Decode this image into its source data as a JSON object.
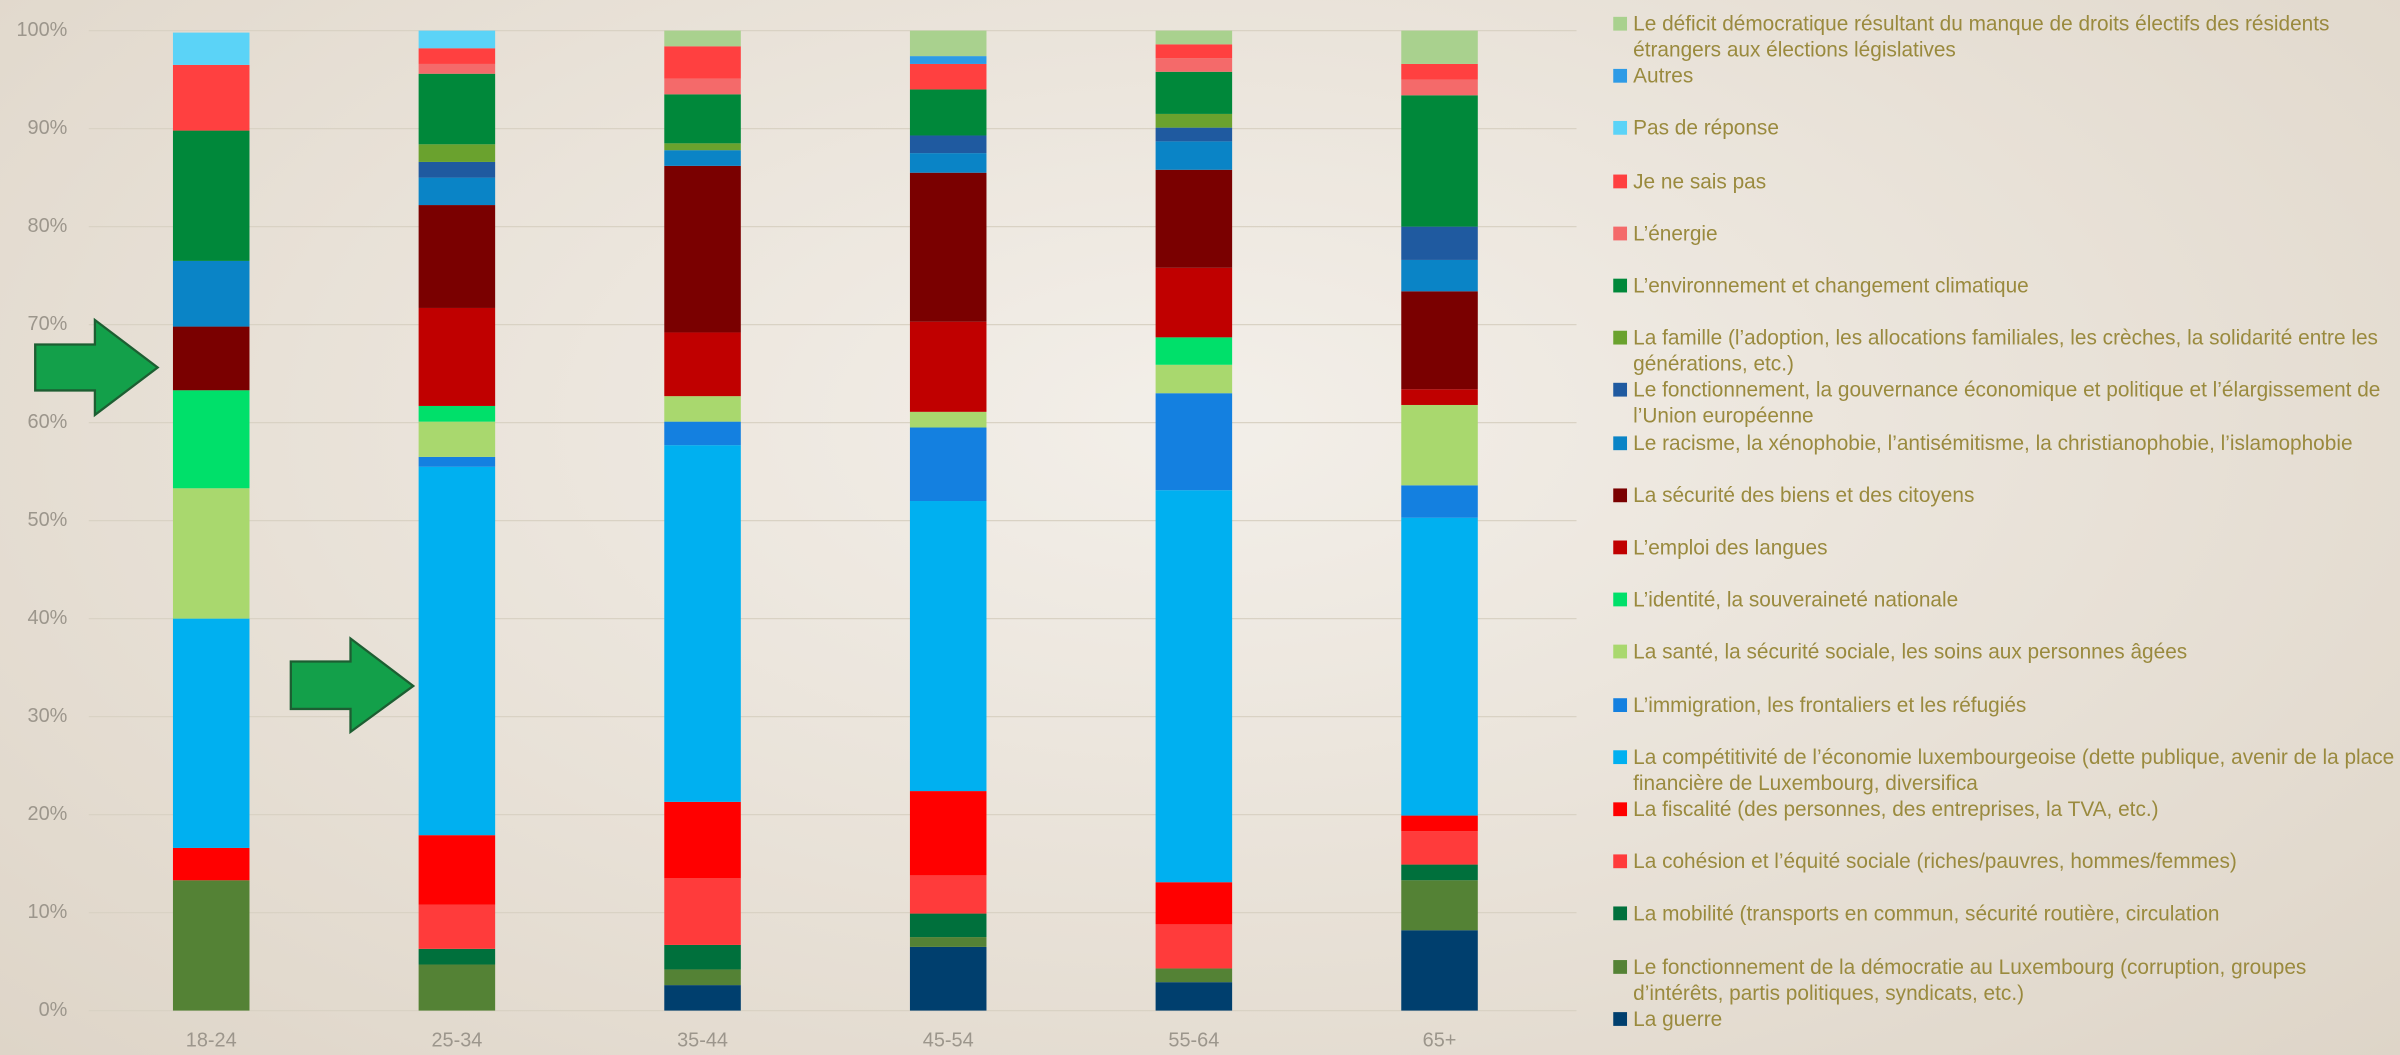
{
  "chart_data": {
    "type": "stacked-bar",
    "categories": [
      "18-24",
      "25-34",
      "35-44",
      "45-54",
      "55-64",
      "65+"
    ],
    "ylim": [
      0,
      100
    ],
    "yticks": [
      {
        "value": 0,
        "label": "0%"
      },
      {
        "value": 10,
        "label": "10%"
      },
      {
        "value": 20,
        "label": "20%"
      },
      {
        "value": 30,
        "label": "30%"
      },
      {
        "value": 40,
        "label": "40%"
      },
      {
        "value": 50,
        "label": "50%"
      },
      {
        "value": 60,
        "label": "60%"
      },
      {
        "value": 70,
        "label": "70%"
      },
      {
        "value": 80,
        "label": "80%"
      },
      {
        "value": 90,
        "label": "90%"
      },
      {
        "value": 100,
        "label": "100%"
      }
    ],
    "grid": true,
    "series": [
      {
        "name": "La guerre",
        "color": "#003f6e",
        "values": [
          0,
          0,
          2.6,
          6.5,
          2.9,
          8.2
        ]
      },
      {
        "name": "Le fonctionnement de la démocratie au Luxembourg (corruption, groupes d’intérêts, partis politiques, syndicats, etc.)",
        "color": "#548235",
        "values": [
          13.3,
          4.7,
          1.6,
          1,
          1.4,
          5.1
        ]
      },
      {
        "name": "La mobilité (transports en commun, sécurité routière, circulation",
        "color": "#00703c",
        "values": [
          0,
          1.6,
          2.5,
          2.4,
          0,
          1.6
        ]
      },
      {
        "name": "La cohésion et l’équité sociale (riches/pauvres, hommes/femmes)",
        "color": "#ff3b3b",
        "values": [
          0,
          4.5,
          6.8,
          3.9,
          4.5,
          3.4
        ]
      },
      {
        "name": "La fiscalité (des personnes, des entreprises, la TVA, etc.)",
        "color": "#ff0000",
        "values": [
          3.3,
          7.1,
          7.8,
          8.6,
          4.3,
          1.6
        ]
      },
      {
        "name": "La compétitivité de l’économie luxembourgeoise (dette publique, avenir de la place financière de Luxembourg, diversifica",
        "color": "#00b0f0",
        "values": [
          23.4,
          37.6,
          36.4,
          29.6,
          40,
          30.4
        ]
      },
      {
        "name": "L’immigration, les frontaliers et les réfugiés",
        "color": "#1480e0",
        "values": [
          0,
          1,
          2.4,
          7.5,
          9.9,
          3.3
        ]
      },
      {
        "name": "La santé, la sécurité sociale, les soins aux personnes âgées",
        "color": "#a9d86e",
        "values": [
          13.3,
          3.6,
          2.6,
          1.6,
          2.9,
          8.2
        ]
      },
      {
        "name": "L’identité, la souveraineté nationale",
        "color": "#00e06a",
        "values": [
          10,
          1.6,
          0,
          0,
          2.8,
          0
        ]
      },
      {
        "name": "L’emploi des langues",
        "color": "#c00000",
        "values": [
          0,
          10,
          6.5,
          9.2,
          7.1,
          1.6
        ]
      },
      {
        "name": "La sécurité des biens et des citoyens",
        "color": "#7a0000",
        "values": [
          6.5,
          10.5,
          17,
          15.2,
          10,
          10
        ]
      },
      {
        "name": "Le racisme, la xénophobie, l’antisémitisme, la christianophobie, l’islamophobie",
        "color": "#0a84c6",
        "values": [
          6.7,
          2.8,
          1.6,
          2,
          2.9,
          3.2
        ]
      },
      {
        "name": "Le fonctionnement, la gouvernance économique et politique et l’élargissement de l’Union européenne",
        "color": "#1f5aa0",
        "values": [
          0,
          1.6,
          0,
          1.8,
          1.4,
          3.4
        ]
      },
      {
        "name": "La famille (l’adoption, les allocations familiales, les crèches, la solidarité entre les générations, etc.)",
        "color": "#6aa22e",
        "values": [
          0,
          1.8,
          0.7,
          0,
          1.4,
          0
        ]
      },
      {
        "name": "L’environnement et changement climatique",
        "color": "#00883a",
        "values": [
          13.3,
          7.2,
          5,
          4.7,
          4.3,
          13.4
        ]
      },
      {
        "name": "L’énergie",
        "color": "#f46a6a",
        "values": [
          0,
          1,
          1.6,
          0,
          1.4,
          1.6
        ]
      },
      {
        "name": "Je ne sais pas",
        "color": "#ff4040",
        "values": [
          6.7,
          1.6,
          3.3,
          2.6,
          1.4,
          1.6
        ]
      },
      {
        "name": "Pas de réponse",
        "color": "#5bd3f7",
        "values": [
          3.3,
          1.8,
          0,
          0,
          0,
          0
        ]
      },
      {
        "name": "Autres",
        "color": "#2e9be6",
        "values": [
          0,
          0,
          0,
          0.8,
          0,
          0
        ]
      },
      {
        "name": "Le déficit démocratique résultant du manque de droits électifs des résidents étrangers aux élections législatives",
        "color": "#a9d18e",
        "values": [
          0,
          0,
          1.6,
          2.6,
          1.4,
          3.4
        ]
      }
    ]
  }
}
